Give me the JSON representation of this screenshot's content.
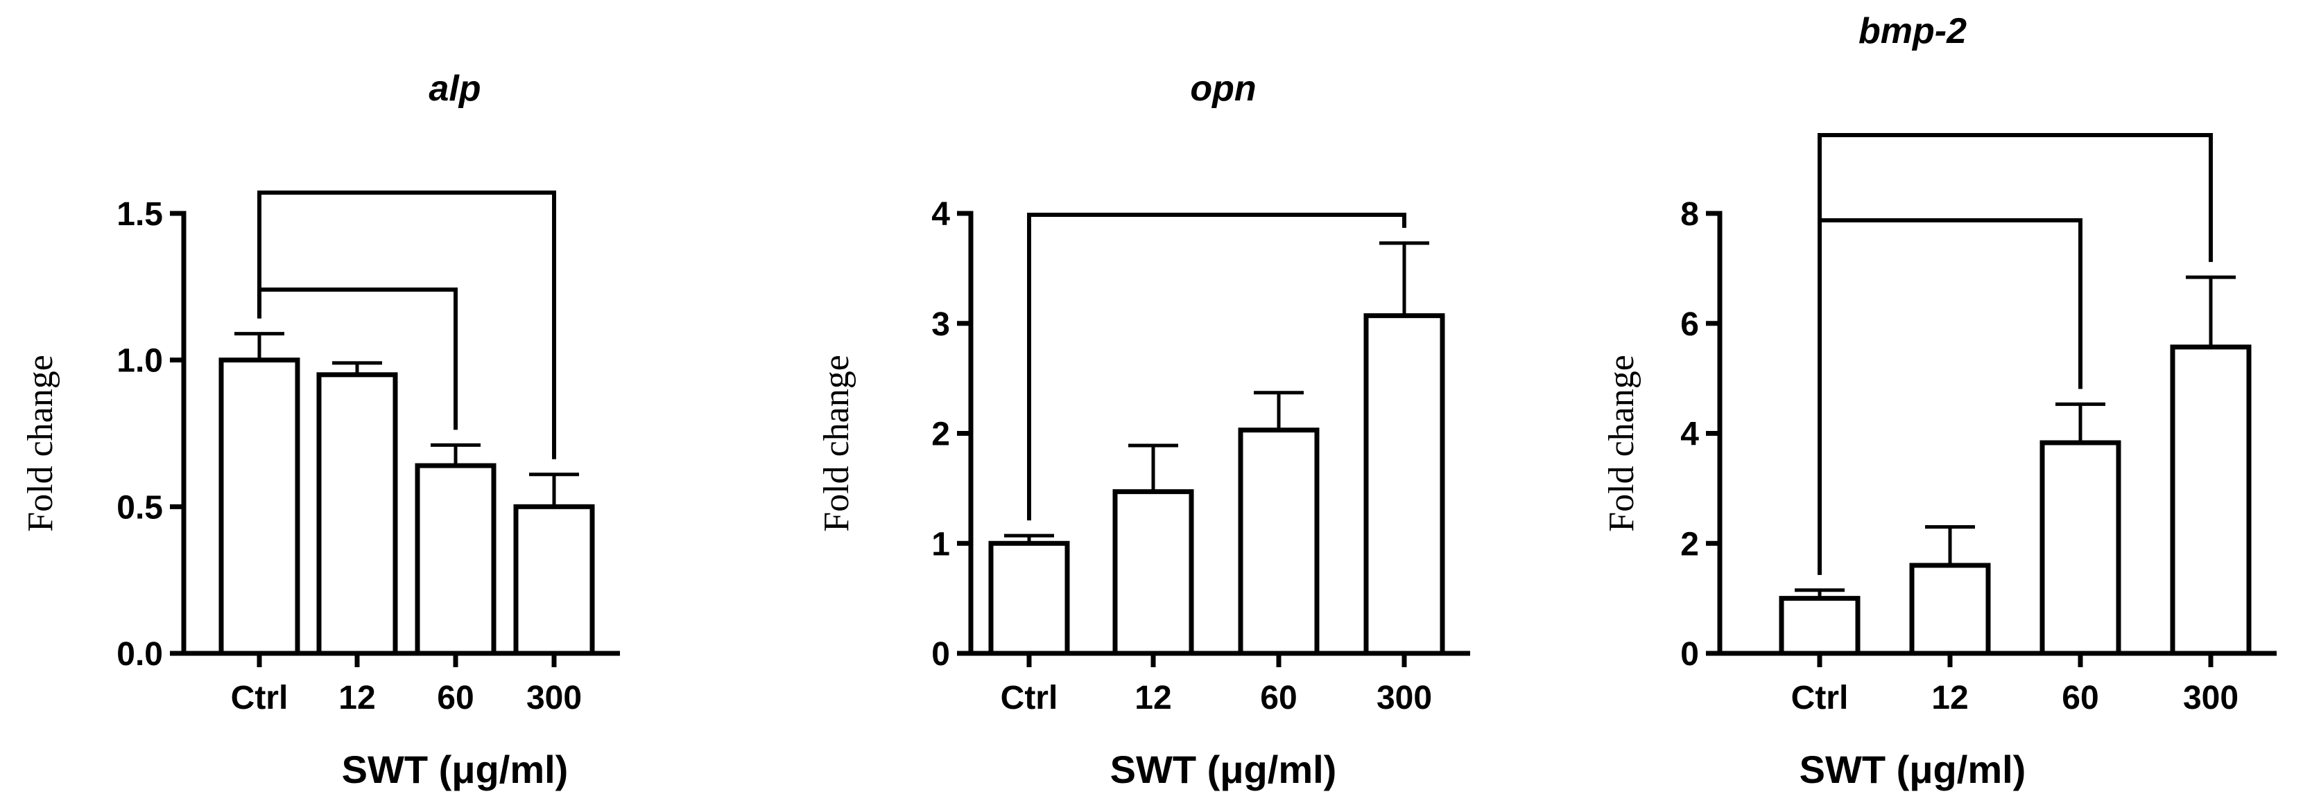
{
  "chart_data": [
    {
      "type": "bar",
      "title": "alp",
      "xlabel": "SWT (μg/ml)",
      "ylabel": "Fold change",
      "categories": [
        "Ctrl",
        "12",
        "60",
        "300"
      ],
      "values": [
        1.0,
        0.95,
        0.64,
        0.5
      ],
      "errors": [
        0.09,
        0.04,
        0.07,
        0.11
      ],
      "ylim": [
        0,
        1.5
      ],
      "yticks": [
        "0.0",
        "0.5",
        "1.0",
        "1.5"
      ],
      "comparisons": [
        {
          "from": "Ctrl",
          "to": "60"
        },
        {
          "from": "Ctrl",
          "to": "300"
        }
      ]
    },
    {
      "type": "bar",
      "title": "opn",
      "xlabel": "SWT (μg/ml)",
      "ylabel": "Fold change",
      "categories": [
        "Ctrl",
        "12",
        "60",
        "300"
      ],
      "values": [
        1.0,
        1.47,
        2.03,
        3.07
      ],
      "errors": [
        0.07,
        0.42,
        0.34,
        0.66
      ],
      "ylim": [
        0,
        4
      ],
      "yticks": [
        "0",
        "1",
        "2",
        "3",
        "4"
      ],
      "comparisons": [
        {
          "from": "Ctrl",
          "to": "300"
        }
      ]
    },
    {
      "type": "bar",
      "title": "bmp-2",
      "xlabel": "SWT (μg/ml)",
      "ylabel": "Fold change",
      "categories": [
        "Ctrl",
        "12",
        "60",
        "300"
      ],
      "values": [
        1.0,
        1.6,
        3.83,
        5.57
      ],
      "errors": [
        0.15,
        0.7,
        0.7,
        1.27
      ],
      "ylim": [
        0,
        8
      ],
      "yticks": [
        "0",
        "2",
        "4",
        "6",
        "8"
      ],
      "comparisons": [
        {
          "from": "Ctrl",
          "to": "60"
        },
        {
          "from": "Ctrl",
          "to": "300"
        }
      ]
    }
  ]
}
